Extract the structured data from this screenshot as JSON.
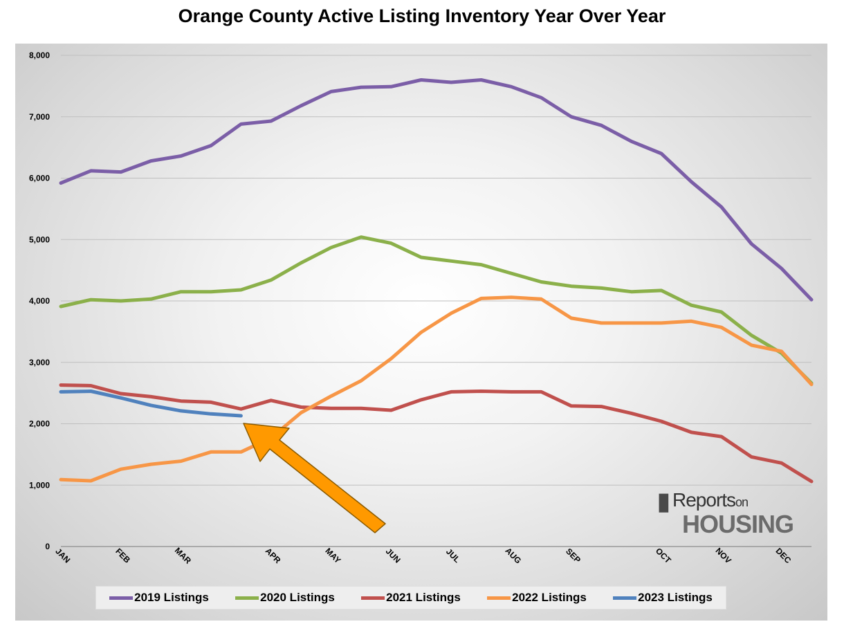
{
  "chart_data": {
    "type": "line",
    "title": "Orange County Active Listing Inventory Year Over Year",
    "xlabel": "",
    "ylabel": "",
    "ylim": [
      0,
      8000
    ],
    "yticks": [
      "0",
      "1,000",
      "2,000",
      "3,000",
      "4,000",
      "5,000",
      "6,000",
      "7,000",
      "8,000"
    ],
    "month_labels": [
      {
        "label": "JAN",
        "index": 0
      },
      {
        "label": "FEB",
        "index": 2
      },
      {
        "label": "MAR",
        "index": 4
      },
      {
        "label": "APR",
        "index": 7
      },
      {
        "label": "MAY",
        "index": 9
      },
      {
        "label": "JUN",
        "index": 11
      },
      {
        "label": "JUL",
        "index": 13
      },
      {
        "label": "AUG",
        "index": 15
      },
      {
        "label": "SEP",
        "index": 17
      },
      {
        "label": "OCT",
        "index": 20
      },
      {
        "label": "NOV",
        "index": 22
      },
      {
        "label": "DEC",
        "index": 24
      }
    ],
    "n_points": 26,
    "series": [
      {
        "name": "2019 Listings",
        "color": "#7b5ea7",
        "values": [
          5920,
          6120,
          6100,
          6280,
          6360,
          6530,
          6880,
          6930,
          7180,
          7410,
          7480,
          7490,
          7600,
          7560,
          7600,
          7490,
          7310,
          7000,
          6860,
          6600,
          6400,
          5940,
          5530,
          4930,
          4530,
          4020
        ]
      },
      {
        "name": "2020 Listings",
        "color": "#8bb04a",
        "values": [
          3910,
          4020,
          4000,
          4030,
          4150,
          4150,
          4180,
          4340,
          4620,
          4870,
          5040,
          4940,
          4710,
          4650,
          4590,
          4450,
          4310,
          4240,
          4210,
          4150,
          4170,
          3930,
          3820,
          3440,
          3150,
          2660
        ]
      },
      {
        "name": "2021 Listings",
        "color": "#c0504d",
        "values": [
          2630,
          2620,
          2490,
          2440,
          2370,
          2350,
          2240,
          2380,
          2270,
          2250,
          2250,
          2220,
          2390,
          2520,
          2530,
          2520,
          2520,
          2290,
          2280,
          2170,
          2040,
          1860,
          1790,
          1460,
          1360,
          1060
        ]
      },
      {
        "name": "2022 Listings",
        "color": "#f79646",
        "values": [
          1090,
          1070,
          1260,
          1340,
          1390,
          1540,
          1540,
          1770,
          2180,
          2450,
          2700,
          3060,
          3490,
          3800,
          4040,
          4060,
          4030,
          3720,
          3640,
          3640,
          3640,
          3670,
          3570,
          3280,
          3180,
          2640
        ]
      },
      {
        "name": "2023 Listings",
        "color": "#4f81bd",
        "values": [
          2520,
          2530,
          2420,
          2300,
          2210,
          2160,
          2130
        ]
      }
    ]
  },
  "logo": {
    "reports": "Reports",
    "on": "on",
    "housing": "HOUSING"
  }
}
